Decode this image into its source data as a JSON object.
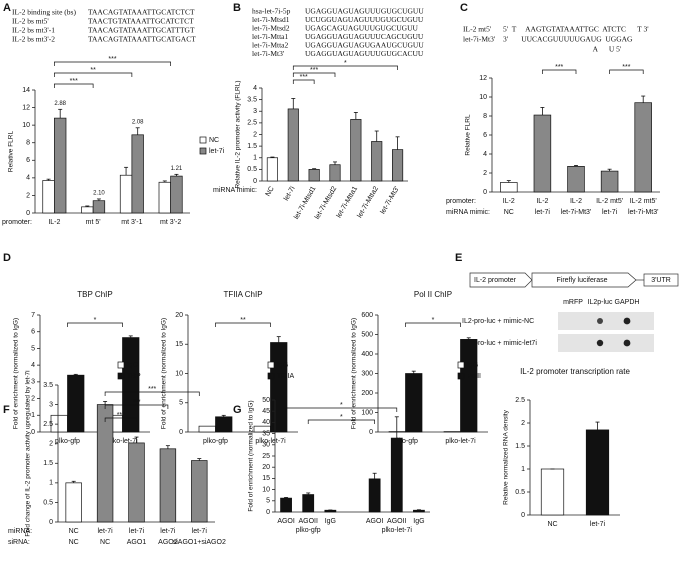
{
  "panel_labels": [
    "A",
    "B",
    "C",
    "D",
    "E",
    "F",
    "G"
  ],
  "sequences_a": [
    {
      "name": "IL-2 binding site (bs)",
      "seq": "TAACAGTATAAATTGCATCTCT"
    },
    {
      "name": "IL-2 bs mt5'",
      "seq": "TAACTGTATAAATTGCATCTCT"
    },
    {
      "name": "IL-2 bs mt3'-1",
      "seq": "TAACAGTATAAATTGCATTTGT"
    },
    {
      "name": "IL-2 bs mt3'-2",
      "seq": "TAACAGTATAAATTGCATGACT"
    }
  ],
  "sequences_b": [
    {
      "name": "hsa-let-7i-5p",
      "seq": "UGAGGUAGUAGUUUGUGCUGUU"
    },
    {
      "name": "let-7i-Mtsd1",
      "seq": "UCUGGUAGUAGUUUGUGCUGUU"
    },
    {
      "name": "let-7i-Mtsd2",
      "seq": "UGAGCAGUAGUUUGUGCUGUU"
    },
    {
      "name": "let-7i-Mtta1",
      "seq": "UGAGGUAGUAGUUUCAGCUGUU"
    },
    {
      "name": "let-7i-Mtta2",
      "seq": "UGAGGUAGUAGUGAAUGCUGUU"
    },
    {
      "name": "let-7i-Mt3'",
      "seq": "UGAGGUAGUAGUUUGUGCACUU"
    }
  ],
  "sequences_c": [
    {
      "name": "IL-2 mt5'",
      "seq": "5'  T     AAGTGTATAAATTGC  ATCTC      T 3'"
    },
    {
      "name": "let-7i-Mt3'",
      "seq": "3'       UUCACGUUUUUGAUG  UGGAG"
    },
    {
      "seq": "                                                A      U 5'"
    }
  ],
  "e_diagram": {
    "promoter": "IL-2 promoter",
    "gene": "Firefly luciferase",
    "utr": "3'UTR",
    "lanes": [
      "mRFP",
      "IL2p-luc",
      "GAPDH"
    ],
    "rows": [
      "IL2-pro-luc + mimic-NC",
      "IL2-pro-luc + mimic-let7i"
    ]
  },
  "chart_data": [
    {
      "type": "bar",
      "ylabel": "Relative FLRL",
      "x_row_label": "promoter:",
      "categories": [
        "IL-2",
        "mt 5'",
        "mt 3'-1",
        "mt 3'-2"
      ],
      "series": [
        {
          "name": "NC",
          "color": "#ffffff",
          "values": [
            3.7,
            0.7,
            4.3,
            3.5
          ],
          "errors": [
            0.15,
            0.1,
            0.9,
            0.15
          ]
        },
        {
          "name": "let-7i",
          "color": "#888888",
          "values": [
            10.8,
            1.4,
            8.9,
            4.2
          ],
          "errors": [
            1.0,
            0.2,
            0.8,
            0.2
          ]
        }
      ],
      "value_annotations": [
        "2.88",
        "2.10",
        "2.08",
        "1.21"
      ],
      "significance": [
        "***",
        "**",
        "***"
      ],
      "ylim": [
        0,
        14
      ],
      "yticks": [
        0,
        2,
        4,
        6,
        8,
        10,
        12,
        14
      ],
      "legend": "right"
    },
    {
      "type": "bar",
      "ylabel": "Relative IL-2 promoter activity (FLRL)",
      "x_row_label": "miRNA mimic:",
      "categories": [
        "NC",
        "let-7i",
        "let-7i-Mtsd1",
        "let-7i-Mtsd2",
        "let-7i-Mtta1",
        "let-7i-Mtta2",
        "let-7i-Mt3'"
      ],
      "values": [
        1.0,
        3.1,
        0.5,
        0.7,
        2.65,
        1.7,
        1.35
      ],
      "errors": [
        0.03,
        0.45,
        0.03,
        0.12,
        0.3,
        0.45,
        0.55
      ],
      "colors": [
        "#ffffff",
        "#888888",
        "#888888",
        "#888888",
        "#888888",
        "#888888",
        "#888888"
      ],
      "significance": [
        "***",
        "***",
        "*"
      ],
      "ylim": [
        0,
        4
      ],
      "yticks": [
        0,
        0.5,
        1,
        1.5,
        2,
        2.5,
        3,
        3.5,
        4
      ]
    },
    {
      "type": "bar",
      "ylabel": "Relative FLRL",
      "x_row_label": "promoter:",
      "x_row_label2": "miRNA mimic:",
      "categories": [
        "IL-2",
        "IL-2",
        "IL-2",
        "IL-2 mt5'",
        "IL-2 mt5'"
      ],
      "categories2": [
        "NC",
        "let-7i",
        "let-7i-Mt3'",
        "let-7i",
        "let-7i-Mt3'"
      ],
      "values": [
        1.0,
        8.1,
        2.7,
        2.2,
        9.4
      ],
      "errors": [
        0.2,
        0.8,
        0.1,
        0.2,
        0.7
      ],
      "colors": [
        "#ffffff",
        "#888888",
        "#888888",
        "#888888",
        "#888888"
      ],
      "significance": [
        "***",
        "***"
      ],
      "ylim": [
        0,
        12
      ],
      "yticks": [
        0,
        2,
        4,
        6,
        8,
        10,
        12
      ]
    },
    {
      "type": "bar",
      "title": "TBP ChIP",
      "ylabel": "Fold of enrichment (normalized to IgG)",
      "categories": [
        "plko-gfp",
        "plko-let-7i"
      ],
      "series": [
        {
          "name": "IgG",
          "color": "#ffffff",
          "values": [
            1.0,
            1.0
          ]
        },
        {
          "name": "TBP",
          "color": "#111111",
          "values": [
            3.4,
            5.65
          ],
          "errors": [
            0.05,
            0.1
          ]
        }
      ],
      "significance": [
        "*"
      ],
      "ylim": [
        0,
        7
      ],
      "yticks": [
        0,
        1,
        2,
        3,
        4,
        5,
        6,
        7
      ],
      "legend": "right"
    },
    {
      "type": "bar",
      "title": "TFIIA ChIP",
      "ylabel": "Fold of enrichment (normalized to IgG)",
      "categories": [
        "plko-gfp",
        "plko-let-7i"
      ],
      "series": [
        {
          "name": "IgG",
          "color": "#ffffff",
          "values": [
            1.0,
            1.0
          ]
        },
        {
          "name": "TFIIA",
          "color": "#111111",
          "values": [
            2.6,
            15.3
          ],
          "errors": [
            0.25,
            1.0
          ]
        }
      ],
      "significance": [
        "**"
      ],
      "ylim": [
        0,
        20
      ],
      "yticks": [
        0,
        5,
        10,
        15,
        20
      ],
      "legend": "right"
    },
    {
      "type": "bar",
      "title": "Pol II ChIP",
      "ylabel": "Fold of enrichment (normalized to IgG)",
      "categories": [
        "plko-gfp",
        "plko-let-7i"
      ],
      "series": [
        {
          "name": "IgG",
          "color": "#ffffff",
          "values": [
            2,
            2
          ]
        },
        {
          "name": "PolII",
          "color": "#111111",
          "values": [
            300,
            475
          ],
          "errors": [
            12,
            8
          ]
        }
      ],
      "significance": [
        "*"
      ],
      "ylim": [
        0,
        600
      ],
      "yticks": [
        0,
        100,
        200,
        300,
        400,
        500,
        600
      ],
      "legend": "right"
    },
    {
      "type": "bar",
      "title": "IL-2 promoter transcription rate",
      "ylabel": "Relative normalized RNA density",
      "categories": [
        "NC",
        "let-7i"
      ],
      "values": [
        1.0,
        1.85
      ],
      "errors": [
        0.0,
        0.17
      ],
      "colors": [
        "#ffffff",
        "#111111"
      ],
      "ylim": [
        0,
        2.5
      ],
      "yticks": [
        0,
        0.5,
        1,
        1.5,
        2,
        2.5
      ]
    },
    {
      "type": "bar",
      "ylabel": "Fold change of IL-2 promoter activity upregulated by let-7i",
      "x_row_label": "miRNA:",
      "x_row_label2": "siRNA:",
      "categories": [
        "NC",
        "let-7i",
        "let-7i",
        "let-7i",
        "let-7i"
      ],
      "categories2": [
        "NC",
        "NC",
        "AGO1",
        "AGO2",
        "siAGO1+siAGO2"
      ],
      "values": [
        1.0,
        3.0,
        2.02,
        1.87,
        1.57
      ],
      "errors": [
        0.04,
        0.08,
        0.15,
        0.08,
        0.05
      ],
      "colors": [
        "#ffffff",
        "#888888",
        "#888888",
        "#888888",
        "#888888"
      ],
      "significance": [
        "***",
        "***",
        "***"
      ],
      "ylim": [
        0,
        3.5
      ],
      "yticks": [
        0,
        0.5,
        1,
        1.5,
        2,
        2.5,
        3,
        3.5
      ]
    },
    {
      "type": "bar",
      "ylabel": "Fold of enrichment (normalized to IgG)",
      "categories": [
        "AGOI",
        "AGOII",
        "IgG",
        null,
        "AGOI",
        "AGOII",
        "IgG"
      ],
      "groups": [
        "plko-gfp",
        "plko-let-7i"
      ],
      "values": [
        6.2,
        7.8,
        0.8,
        null,
        14.8,
        33,
        0.8
      ],
      "errors": [
        0.3,
        0.7,
        0.1,
        null,
        2.5,
        9.5,
        0.2
      ],
      "color": "#111111",
      "significance": [
        "*",
        "*"
      ],
      "ylim": [
        0,
        50
      ],
      "yticks": [
        0,
        5,
        10,
        15,
        20,
        25,
        30,
        35,
        40,
        45,
        50
      ]
    }
  ]
}
